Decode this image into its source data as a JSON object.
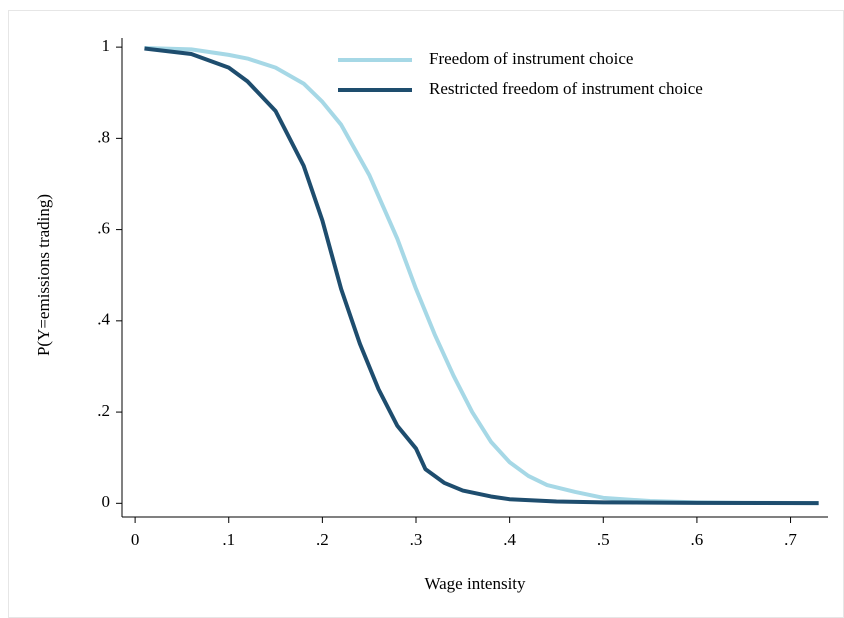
{
  "chart_data": {
    "type": "line",
    "x_label": "Wage intensity",
    "y_label": "P(Y=emissions trading)",
    "xlim": [
      -0.014,
      0.74
    ],
    "ylim": [
      -0.03,
      1.02
    ],
    "xticks": [
      0,
      {
        "value": 0.1,
        "label": ".1"
      },
      {
        "value": 0.2,
        "label": ".2"
      },
      {
        "value": 0.3,
        "label": ".3"
      },
      {
        "value": 0.4,
        "label": ".4"
      },
      {
        "value": 0.5,
        "label": ".5"
      },
      {
        "value": 0.6,
        "label": ".6"
      },
      {
        "value": 0.7,
        "label": ".7"
      }
    ],
    "yticks": [
      0,
      {
        "value": 0.2,
        "label": ".2"
      },
      {
        "value": 0.4,
        "label": ".4"
      },
      {
        "value": 0.6,
        "label": ".6"
      },
      {
        "value": 0.8,
        "label": ".8"
      },
      1
    ],
    "legend": "top-right",
    "series": [
      {
        "name": "Freedom of instrument choice",
        "color": "#a6d8e6",
        "x": [
          0.01,
          0.06,
          0.1,
          0.12,
          0.15,
          0.18,
          0.2,
          0.22,
          0.25,
          0.28,
          0.3,
          0.32,
          0.34,
          0.36,
          0.38,
          0.4,
          0.42,
          0.44,
          0.47,
          0.5,
          0.55,
          0.6,
          0.65,
          0.73
        ],
        "values": [
          0.998,
          0.995,
          0.983,
          0.975,
          0.955,
          0.92,
          0.88,
          0.83,
          0.72,
          0.58,
          0.47,
          0.37,
          0.28,
          0.2,
          0.135,
          0.09,
          0.06,
          0.04,
          0.025,
          0.012,
          0.005,
          0.002,
          0.001,
          0.0005
        ]
      },
      {
        "name": "Restricted freedom of instrument choice",
        "color": "#1e4d6e",
        "x": [
          0.01,
          0.06,
          0.1,
          0.12,
          0.15,
          0.18,
          0.2,
          0.22,
          0.24,
          0.26,
          0.28,
          0.3,
          0.31,
          0.33,
          0.35,
          0.38,
          0.4,
          0.45,
          0.5,
          0.6,
          0.73
        ],
        "values": [
          0.997,
          0.985,
          0.955,
          0.925,
          0.86,
          0.74,
          0.62,
          0.47,
          0.35,
          0.25,
          0.17,
          0.12,
          0.075,
          0.045,
          0.028,
          0.015,
          0.009,
          0.004,
          0.002,
          0.001,
          0.0005
        ]
      }
    ]
  }
}
